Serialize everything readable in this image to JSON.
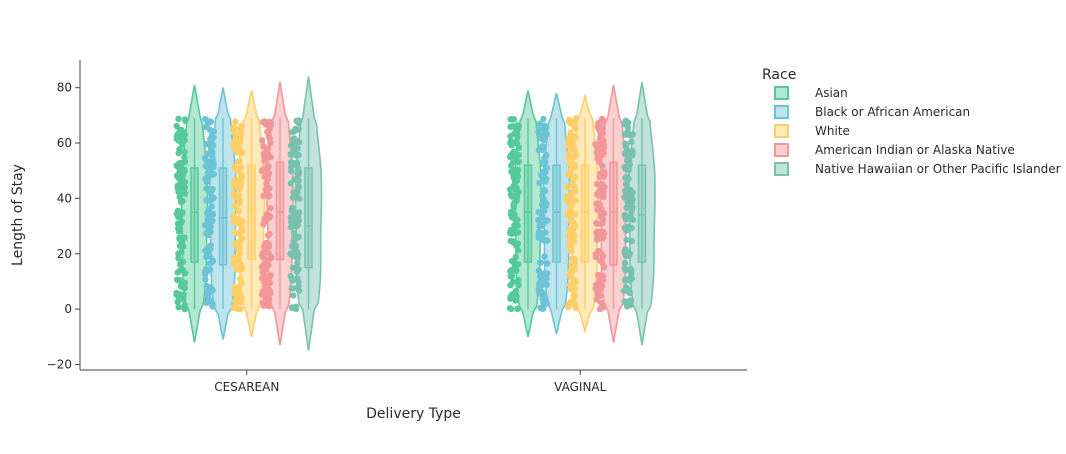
{
  "chart_data": {
    "type": "violin",
    "categories": [
      "CESAREAN",
      "VAGINAL"
    ],
    "xlabel": "Delivery Type",
    "ylabel": "Length of Stay",
    "ylim": [
      -22,
      90
    ],
    "yticks": [
      -20,
      0,
      20,
      40,
      60,
      80
    ],
    "grid": false,
    "legend": {
      "title": "Race",
      "placement": "right"
    },
    "point_range": [
      0,
      69
    ],
    "series": [
      {
        "name": "Asian",
        "color": "#55c99a",
        "stats": [
          {
            "category": "CESAREAN",
            "q1": 17,
            "median": 35,
            "q3": 51,
            "min": 0,
            "max": 69,
            "kde_min": -12,
            "kde_max": 81
          },
          {
            "category": "VAGINAL",
            "q1": 17,
            "median": 35,
            "q3": 52,
            "min": 0,
            "max": 69,
            "kde_min": -10,
            "kde_max": 79
          }
        ]
      },
      {
        "name": "Black or African American",
        "color": "#6cc3d5",
        "stats": [
          {
            "category": "CESAREAN",
            "q1": 16,
            "median": 33,
            "q3": 51,
            "min": 0,
            "max": 69,
            "kde_min": -11,
            "kde_max": 80
          },
          {
            "category": "VAGINAL",
            "q1": 17,
            "median": 35,
            "q3": 52,
            "min": 0,
            "max": 69,
            "kde_min": -9,
            "kde_max": 78
          }
        ]
      },
      {
        "name": "White",
        "color": "#ffce67",
        "stats": [
          {
            "category": "CESAREAN",
            "q1": 18,
            "median": 36,
            "q3": 52,
            "min": 0,
            "max": 69,
            "kde_min": -10,
            "kde_max": 79
          },
          {
            "category": "VAGINAL",
            "q1": 17,
            "median": 35,
            "q3": 52,
            "min": 0,
            "max": 69,
            "kde_min": -8,
            "kde_max": 77
          }
        ]
      },
      {
        "name": "American Indian or Alaska Native",
        "color": "#f3969a",
        "stats": [
          {
            "category": "CESAREAN",
            "q1": 18,
            "median": 35,
            "q3": 53,
            "min": 0,
            "max": 69,
            "kde_min": -13,
            "kde_max": 82
          },
          {
            "category": "VAGINAL",
            "q1": 16,
            "median": 35,
            "q3": 53,
            "min": 0,
            "max": 69,
            "kde_min": -12,
            "kde_max": 81
          }
        ]
      },
      {
        "name": "Native Hawaiian or Other Pacific Islander",
        "color": "#78c2ad",
        "stats": [
          {
            "category": "CESAREAN",
            "q1": 15,
            "median": 30,
            "q3": 51,
            "min": 0,
            "max": 69,
            "kde_min": -15,
            "kde_max": 84
          },
          {
            "category": "VAGINAL",
            "q1": 17,
            "median": 34,
            "q3": 52,
            "min": 0,
            "max": 69,
            "kde_min": -13,
            "kde_max": 82
          }
        ]
      }
    ]
  }
}
